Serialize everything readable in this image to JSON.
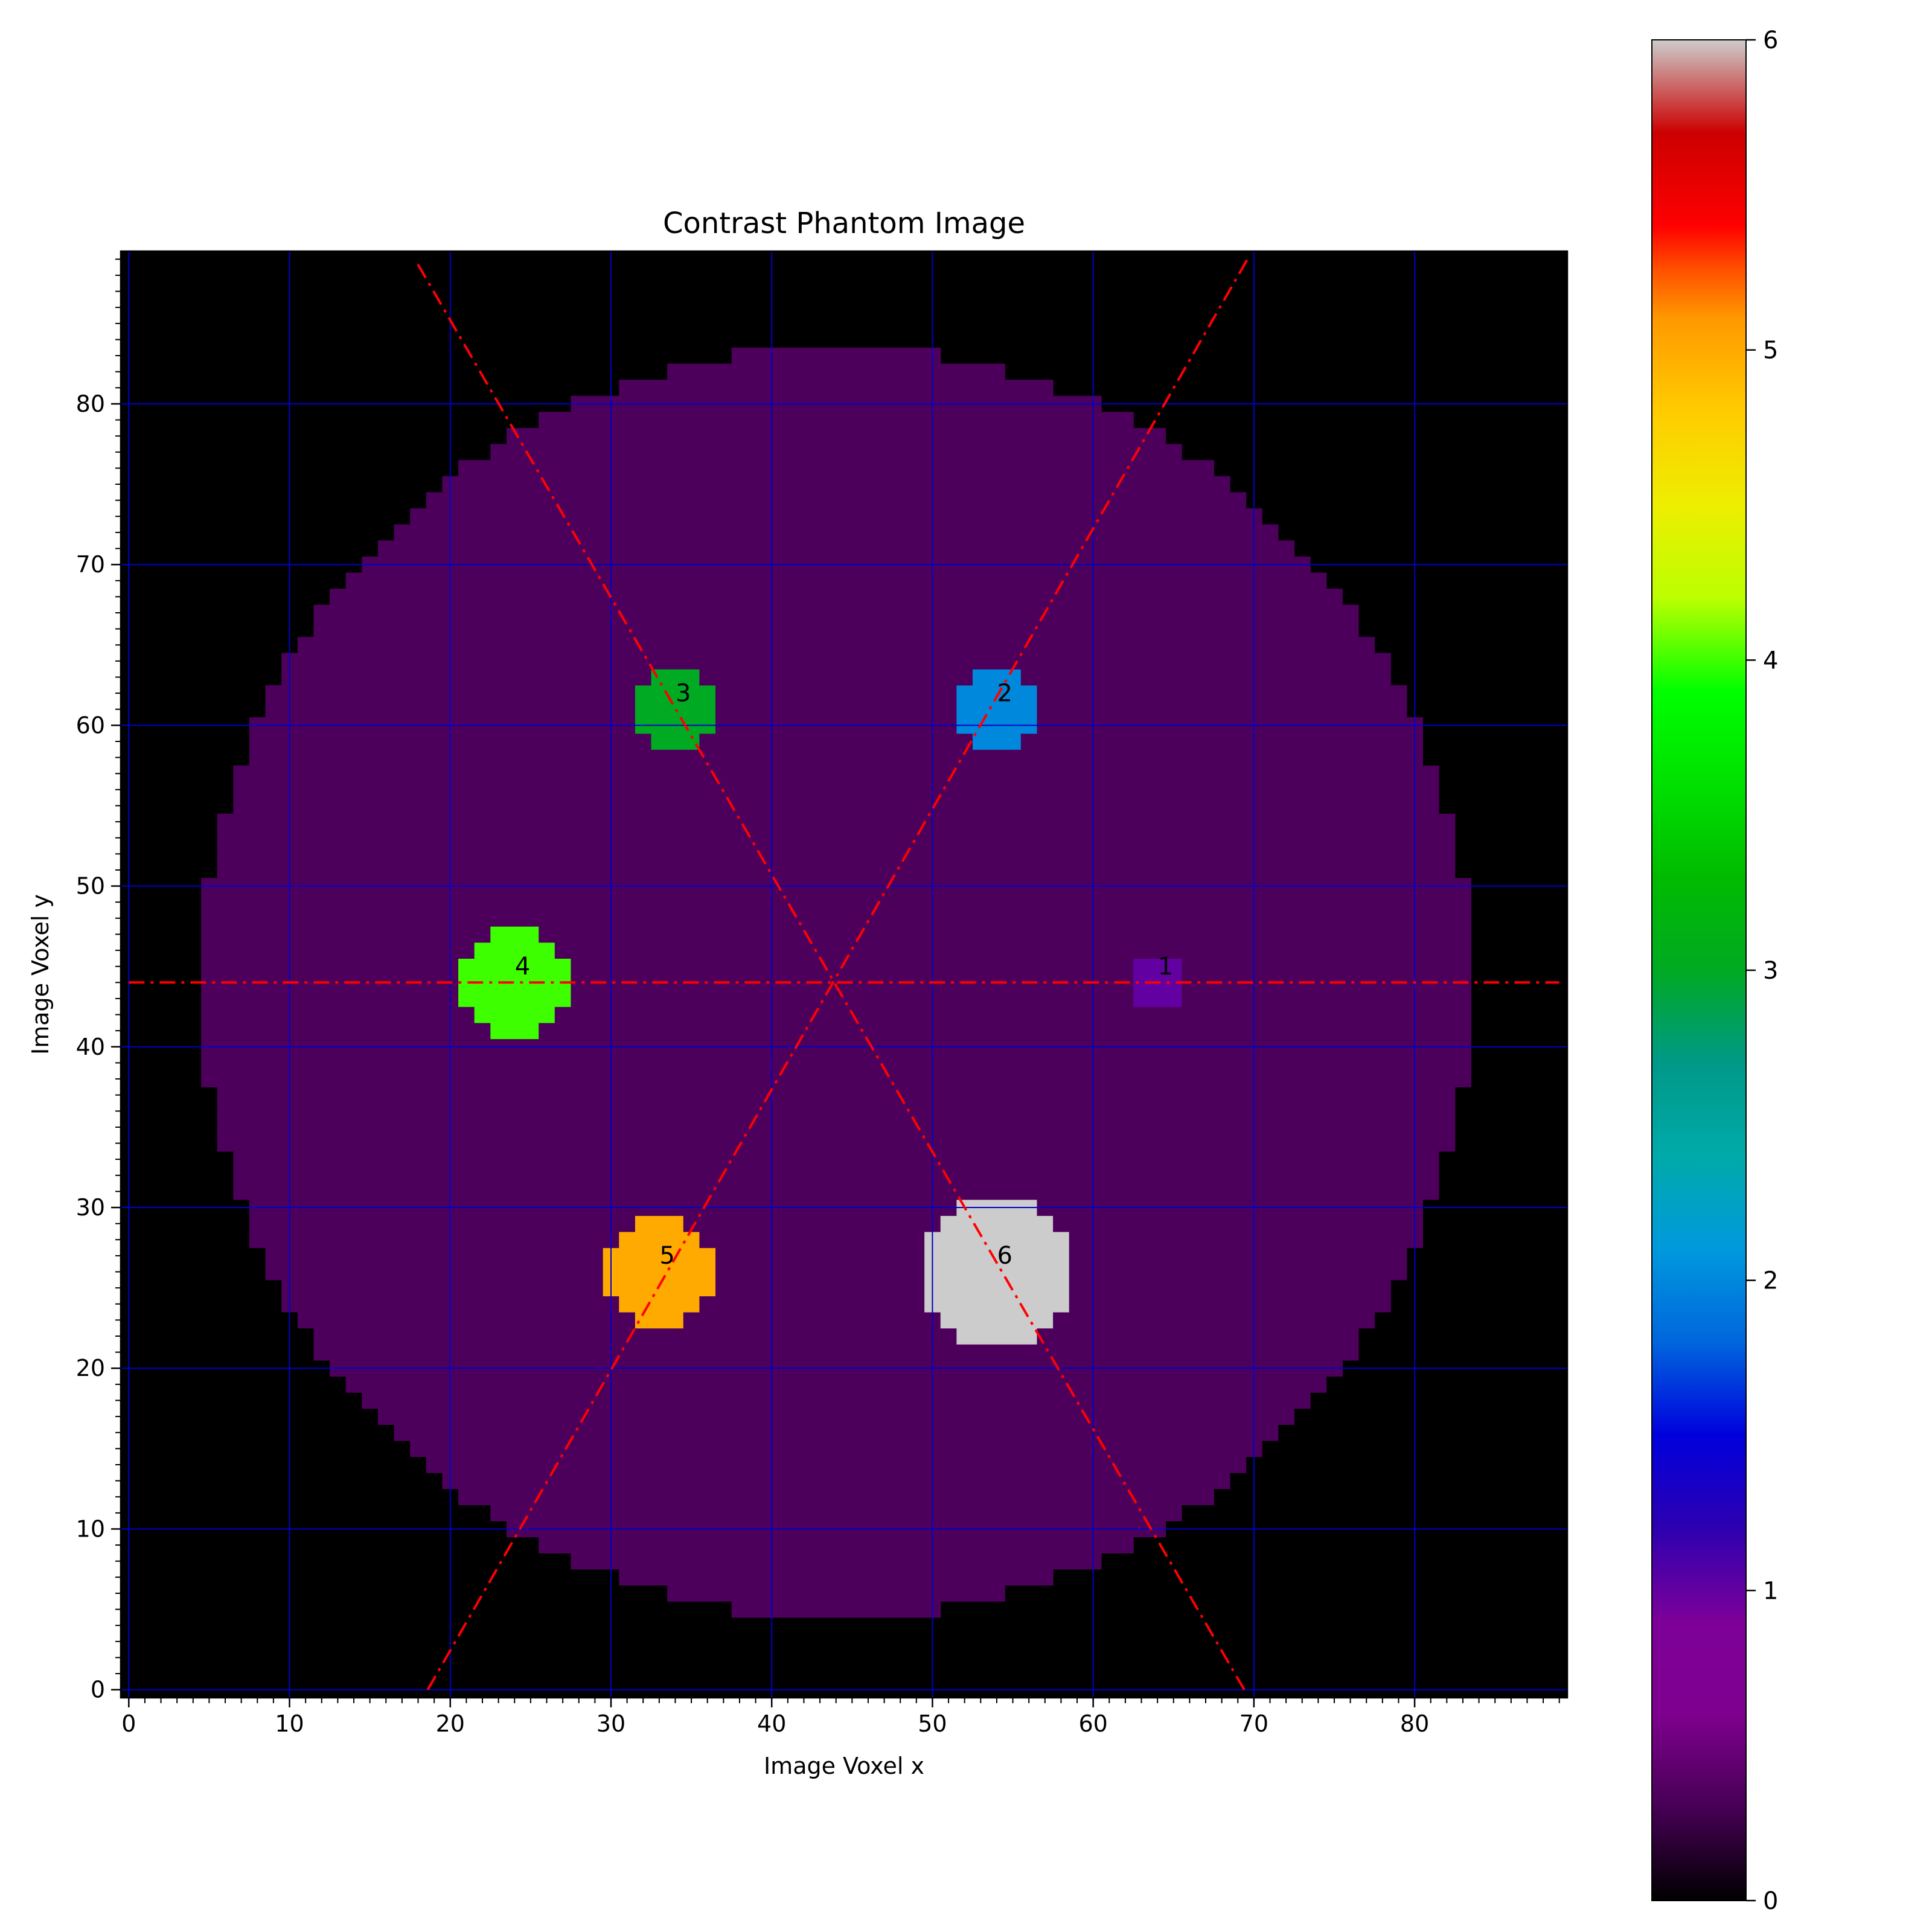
{
  "chart_data": {
    "type": "heatmap",
    "title": "Contrast Phantom Image",
    "xlabel": "Image Voxel x",
    "ylabel": "Image Voxel y",
    "xlim": [
      -0.5,
      89.5
    ],
    "ylim": [
      -0.5,
      89.5
    ],
    "x_ticks": [
      0,
      10,
      20,
      30,
      40,
      50,
      60,
      70,
      80
    ],
    "y_ticks": [
      0,
      10,
      20,
      30,
      40,
      50,
      60,
      70,
      80
    ],
    "grid": true,
    "grid_color": "#0000cc",
    "colormap": "nipy_spectral",
    "background_value": 0,
    "phantom": {
      "center": [
        44,
        44
      ],
      "radius": 39.5,
      "value": 0.33
    },
    "inserts": [
      {
        "label": "1",
        "center": [
          64,
          44
        ],
        "radius": 1.5,
        "value": 1
      },
      {
        "label": "2",
        "center": [
          54,
          61
        ],
        "radius": 2.6,
        "value": 2
      },
      {
        "label": "3",
        "center": [
          34,
          61
        ],
        "radius": 2.6,
        "value": 3
      },
      {
        "label": "4",
        "center": [
          24,
          44
        ],
        "radius": 3.6,
        "value": 4
      },
      {
        "label": "5",
        "center": [
          33,
          26
        ],
        "radius": 3.6,
        "value": 5
      },
      {
        "label": "6",
        "center": [
          54,
          26
        ],
        "radius": 4.6,
        "value": 6
      }
    ],
    "guide_lines": [
      {
        "from": [
          0,
          44
        ],
        "to": [
          89,
          44
        ]
      },
      {
        "from": [
          18.6,
          0
        ],
        "to": [
          69.6,
          89
        ]
      },
      {
        "from": [
          69.4,
          0
        ],
        "to": [
          17.8,
          89
        ]
      }
    ],
    "guide_line_color": "#ff0000",
    "colorbar": {
      "min": 0,
      "max": 6,
      "ticks": [
        0,
        1,
        2,
        3,
        4,
        5,
        6
      ]
    }
  }
}
